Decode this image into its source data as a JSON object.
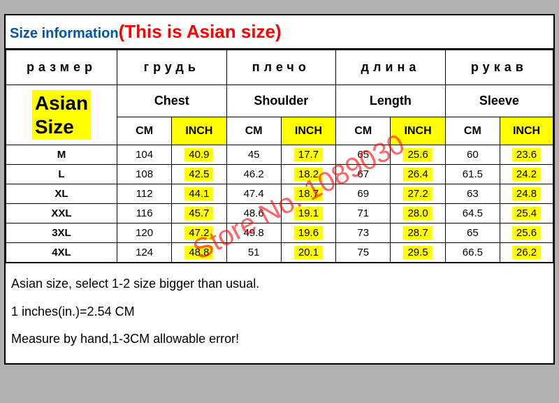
{
  "title": {
    "label": "Size information",
    "asian_note": "(This is Asian size)"
  },
  "russian_headers": [
    "размер",
    "грудь",
    "плечо",
    "длина",
    "рукав"
  ],
  "measure_headers": {
    "size": "Asian Size",
    "cols": [
      "Chest",
      "Shoulder",
      "Length",
      "Sleeve"
    ]
  },
  "unit_headers": {
    "cm": "CM",
    "inch": "INCH"
  },
  "rows": [
    {
      "size": "M",
      "chest_cm": "104",
      "chest_in": "40.9",
      "shoulder_cm": "45",
      "shoulder_in": "17.7",
      "length_cm": "65",
      "length_in": "25.6",
      "sleeve_cm": "60",
      "sleeve_in": "23.6"
    },
    {
      "size": "L",
      "chest_cm": "108",
      "chest_in": "42.5",
      "shoulder_cm": "46.2",
      "shoulder_in": "18.2",
      "length_cm": "67",
      "length_in": "26.4",
      "sleeve_cm": "61.5",
      "sleeve_in": "24.2"
    },
    {
      "size": "XL",
      "chest_cm": "112",
      "chest_in": "44.1",
      "shoulder_cm": "47.4",
      "shoulder_in": "18.7",
      "length_cm": "69",
      "length_in": "27.2",
      "sleeve_cm": "63",
      "sleeve_in": "24.8"
    },
    {
      "size": "XXL",
      "chest_cm": "116",
      "chest_in": "45.7",
      "shoulder_cm": "48.6",
      "shoulder_in": "19.1",
      "length_cm": "71",
      "length_in": "28.0",
      "sleeve_cm": "64.5",
      "sleeve_in": "25.4"
    },
    {
      "size": "3XL",
      "chest_cm": "120",
      "chest_in": "47.2",
      "shoulder_cm": "49.8",
      "shoulder_in": "19.6",
      "length_cm": "73",
      "length_in": "28.7",
      "sleeve_cm": "65",
      "sleeve_in": "25.6"
    },
    {
      "size": "4XL",
      "chest_cm": "124",
      "chest_in": "48.8",
      "shoulder_cm": "51",
      "shoulder_in": "20.1",
      "length_cm": "75",
      "length_in": "29.5",
      "sleeve_cm": "66.5",
      "sleeve_in": "26.2"
    }
  ],
  "notes": {
    "line1": "Asian size, select 1-2 size bigger than usual.",
    "line2": "1 inches(in.)=2.54 CM",
    "line3": "Measure by hand,1-3CM allowable error!"
  },
  "watermark": "Store No. 1089030",
  "colors": {
    "highlight": "#ffff00",
    "title_blue": "#0055aa",
    "title_red": "#ff0000",
    "watermark": "rgba(255,0,0,0.6)",
    "page_bg": "#b0b0b0"
  },
  "column_widths_pct": [
    20.3,
    10,
    10,
    10,
    10,
    10,
    10,
    10,
    9.7
  ]
}
